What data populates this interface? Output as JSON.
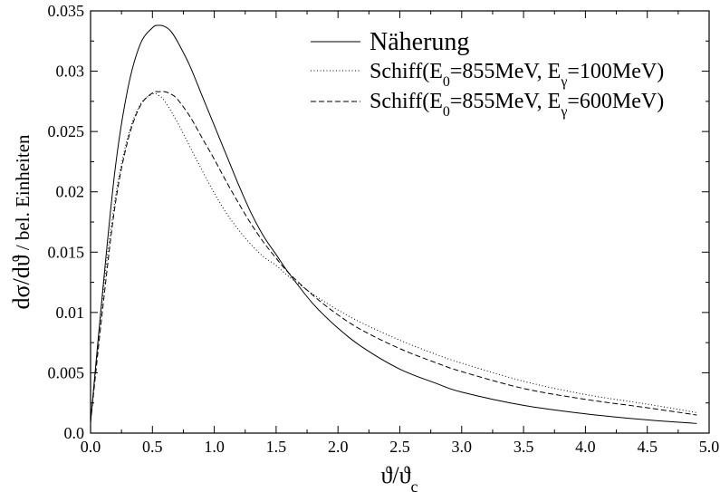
{
  "chart_data": {
    "type": "line",
    "xlim": [
      0.0,
      5.0
    ],
    "ylim": [
      0.0,
      0.035
    ],
    "x_ticks": [
      0.0,
      0.5,
      1.0,
      1.5,
      2.0,
      2.5,
      3.0,
      3.5,
      4.0,
      4.5,
      5.0
    ],
    "y_ticks": [
      0.0,
      0.005,
      0.01,
      0.015,
      0.02,
      0.025,
      0.03,
      0.035
    ],
    "x_tick_labels": [
      "0.0",
      "0.5",
      "1.0",
      "1.5",
      "2.0",
      "2.5",
      "3.0",
      "3.5",
      "4.0",
      "4.5",
      "5.0"
    ],
    "y_tick_labels": [
      "0.0",
      "0.005",
      "0.01",
      "0.015",
      "0.02",
      "0.025",
      "0.03",
      "0.035"
    ],
    "xlabel": {
      "base": "ϑ/ϑ",
      "sub": "c"
    },
    "ylabel": {
      "main": "dσ/dϑ",
      "rest": " / bel. Einheiten"
    },
    "grid": false,
    "legend_position": "top-right",
    "series": [
      {
        "name": "Näherung",
        "legend": {
          "text": "Näherung"
        },
        "style": "solid",
        "x": [
          0.0,
          0.1,
          0.2,
          0.3,
          0.4,
          0.5,
          0.55,
          0.6,
          0.65,
          0.7,
          0.8,
          0.9,
          1.0,
          1.1,
          1.2,
          1.3,
          1.4,
          1.5,
          1.6,
          1.8,
          2.0,
          2.2,
          2.5,
          2.8,
          3.0,
          3.5,
          4.0,
          4.5,
          4.9
        ],
        "y": [
          0.0009,
          0.012,
          0.022,
          0.0285,
          0.0322,
          0.0336,
          0.0338,
          0.0337,
          0.0333,
          0.0325,
          0.0305,
          0.028,
          0.0255,
          0.023,
          0.0205,
          0.0182,
          0.0163,
          0.0148,
          0.0133,
          0.0107,
          0.0087,
          0.0071,
          0.0053,
          0.0041,
          0.0034,
          0.0023,
          0.0016,
          0.0011,
          0.0008
        ]
      },
      {
        "name": "Schiff(E0=855MeV, Eγ=100MeV)",
        "legend": {
          "pre": "Schiff(E",
          "sub1": "0",
          "mid": "=855MeV, E",
          "sub2": "γ",
          "post": "=100MeV)"
        },
        "style": "dotted",
        "x": [
          0.0,
          0.1,
          0.2,
          0.3,
          0.4,
          0.5,
          0.55,
          0.6,
          0.7,
          0.8,
          0.9,
          1.0,
          1.1,
          1.2,
          1.3,
          1.4,
          1.5,
          1.6,
          1.8,
          2.0,
          2.2,
          2.5,
          2.8,
          3.0,
          3.5,
          4.0,
          4.5,
          4.9
        ],
        "y": [
          0.0009,
          0.0115,
          0.0195,
          0.0245,
          0.0272,
          0.0281,
          0.028,
          0.0275,
          0.0258,
          0.0238,
          0.0218,
          0.0199,
          0.0182,
          0.0168,
          0.0156,
          0.0146,
          0.0139,
          0.013,
          0.0115,
          0.0102,
          0.0091,
          0.0077,
          0.0065,
          0.0058,
          0.0043,
          0.0032,
          0.0024,
          0.0017
        ]
      },
      {
        "name": "Schiff(E0=855MeV, Eγ=600MeV)",
        "legend": {
          "pre": "Schiff(E",
          "sub1": "0",
          "mid": "=855MeV, E",
          "sub2": "γ",
          "post": "=600MeV)"
        },
        "style": "dashed",
        "x": [
          0.0,
          0.1,
          0.2,
          0.3,
          0.4,
          0.5,
          0.55,
          0.6,
          0.65,
          0.7,
          0.8,
          0.9,
          1.0,
          1.1,
          1.2,
          1.3,
          1.4,
          1.5,
          1.6,
          1.8,
          2.0,
          2.2,
          2.5,
          2.8,
          3.0,
          3.5,
          4.0,
          4.5,
          4.9
        ],
        "y": [
          0.0009,
          0.0105,
          0.019,
          0.0242,
          0.0271,
          0.0282,
          0.0283,
          0.0283,
          0.0281,
          0.0277,
          0.0263,
          0.0245,
          0.0227,
          0.0208,
          0.019,
          0.0173,
          0.0158,
          0.0145,
          0.0133,
          0.0114,
          0.0098,
          0.0085,
          0.007,
          0.0058,
          0.0051,
          0.0037,
          0.0028,
          0.0021,
          0.0015
        ]
      }
    ]
  }
}
